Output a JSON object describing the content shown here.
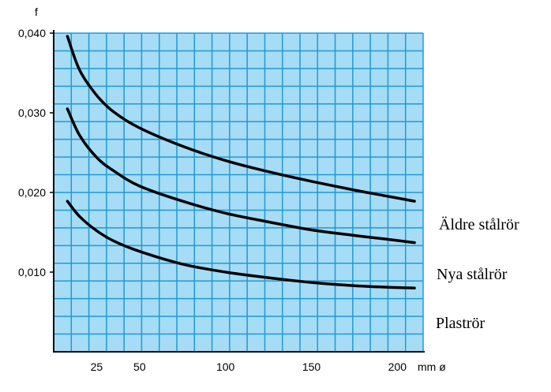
{
  "chart_data": {
    "type": "line",
    "title": "",
    "ylabel": "f",
    "xlabel": "mm ø",
    "xlim": [
      0,
      215
    ],
    "ylim": [
      0,
      0.04
    ],
    "grid": true,
    "background_color": "#a6dcf5",
    "grid_color": "#1e9ad6",
    "line_color": "#000000",
    "x_ticks": [
      {
        "value": 25,
        "label": "25"
      },
      {
        "value": 50,
        "label": "50"
      },
      {
        "value": 100,
        "label": "100"
      },
      {
        "value": 150,
        "label": "150"
      },
      {
        "value": 200,
        "label": "200"
      }
    ],
    "y_ticks": [
      {
        "value": 0.01,
        "label": "0,010"
      },
      {
        "value": 0.02,
        "label": "0,020"
      },
      {
        "value": 0.03,
        "label": "0,030"
      },
      {
        "value": 0.04,
        "label": "0,040"
      }
    ],
    "series": [
      {
        "name": "Äldre stålrör",
        "points": [
          [
            8,
            0.0396
          ],
          [
            15,
            0.0354
          ],
          [
            25,
            0.0322
          ],
          [
            35,
            0.0301
          ],
          [
            50,
            0.0281
          ],
          [
            75,
            0.0258
          ],
          [
            100,
            0.024
          ],
          [
            125,
            0.0226
          ],
          [
            150,
            0.0214
          ],
          [
            175,
            0.0203
          ],
          [
            195,
            0.0195
          ],
          [
            210,
            0.0189
          ]
        ]
      },
      {
        "name": "Nya stålrör",
        "points": [
          [
            8,
            0.0305
          ],
          [
            15,
            0.0272
          ],
          [
            25,
            0.0244
          ],
          [
            35,
            0.0227
          ],
          [
            50,
            0.0208
          ],
          [
            75,
            0.0189
          ],
          [
            100,
            0.0174
          ],
          [
            125,
            0.0163
          ],
          [
            150,
            0.0153
          ],
          [
            175,
            0.0146
          ],
          [
            195,
            0.0141
          ],
          [
            210,
            0.0137
          ]
        ]
      },
      {
        "name": "Plaströr",
        "points": [
          [
            8,
            0.0189
          ],
          [
            15,
            0.017
          ],
          [
            25,
            0.0152
          ],
          [
            35,
            0.0139
          ],
          [
            50,
            0.0126
          ],
          [
            75,
            0.011
          ],
          [
            100,
            0.01
          ],
          [
            125,
            0.0093
          ],
          [
            150,
            0.0087
          ],
          [
            175,
            0.0083
          ],
          [
            195,
            0.0081
          ],
          [
            210,
            0.008
          ]
        ]
      }
    ]
  }
}
